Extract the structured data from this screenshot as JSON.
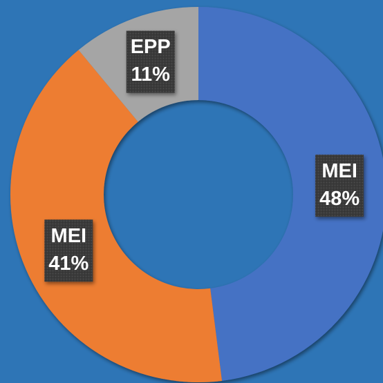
{
  "chart_data": {
    "type": "donut",
    "categories": [
      "MEI",
      "MEI",
      "EPP"
    ],
    "values": [
      48,
      41,
      11
    ],
    "value_labels": [
      "48%",
      "41%",
      "11%"
    ],
    "colors": [
      "#4472c4",
      "#ed7d31",
      "#a5a5a5"
    ]
  }
}
